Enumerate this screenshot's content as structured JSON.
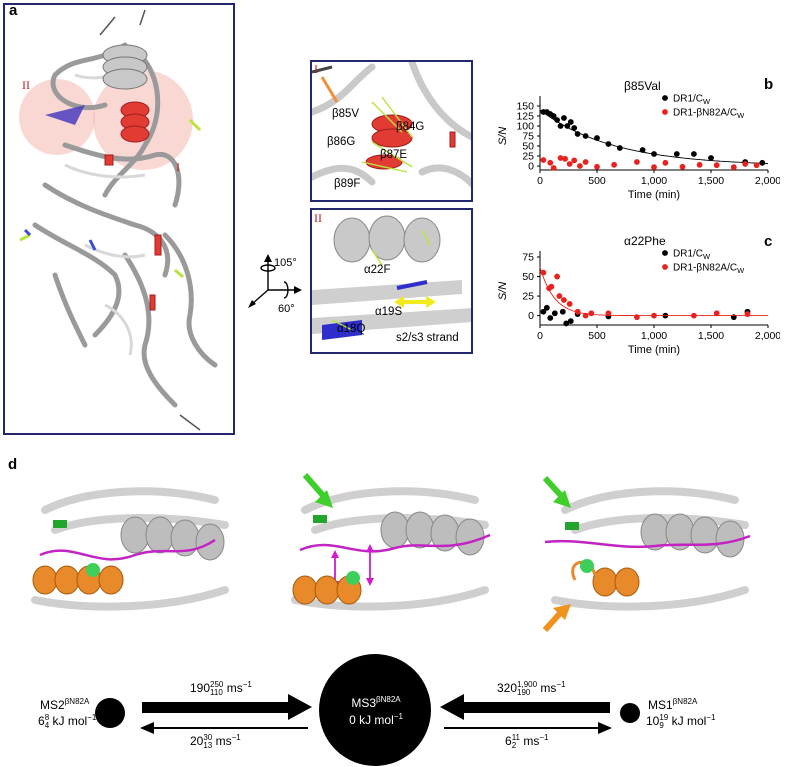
{
  "panels": {
    "a": {
      "label": "a",
      "region_labels": [
        "II",
        "I"
      ],
      "rotation": {
        "vertical": "105°",
        "horizontal": "60°"
      },
      "inset_I": {
        "label": "I",
        "residues": [
          "β85V",
          "β84G",
          "β86G",
          "β87E",
          "β89F"
        ]
      },
      "inset_II": {
        "label": "II",
        "residues": [
          "α22F",
          "α19S",
          "α18Q",
          "s2/s3 strand"
        ]
      }
    },
    "b": {
      "label": "b"
    },
    "c": {
      "label": "c"
    },
    "d": {
      "label": "d",
      "states": [
        {
          "name": "MS2",
          "sup": "βN82A",
          "energy": "6",
          "energy_sup": "8",
          "energy_sub": "4",
          "unit": "kJ mol"
        },
        {
          "name": "MS3",
          "sup": "βN82A",
          "energy_text": "0 kJ mol"
        },
        {
          "name": "MS1",
          "sup": "βN82A",
          "energy": "10",
          "energy_sup": "19",
          "energy_sub": "9",
          "unit": "kJ mol"
        }
      ],
      "rates": [
        {
          "value": "190",
          "sup": "250",
          "sub": "110",
          "unit": "ms"
        },
        {
          "value": "20",
          "sup": "30",
          "sub": "13",
          "unit": "ms"
        },
        {
          "value": "320",
          "sup": "1,900",
          "sub": "190",
          "unit": "ms"
        },
        {
          "value": "6",
          "sup": "11",
          "sub": "2",
          "unit": "ms"
        }
      ],
      "minus_one": "−1"
    }
  },
  "colors": {
    "dr1": "#000000",
    "mutant": "#e8231f",
    "frame": "#22276e",
    "helix": "#e8892a",
    "arrow_green": "#3ecf2b",
    "peptide": "#c223c2"
  },
  "chart_data": [
    {
      "type": "scatter",
      "title": "β85Val",
      "xlabel": "Time (min)",
      "ylabel": "S/N",
      "xlim": [
        0,
        2000
      ],
      "ylim": [
        -10,
        160
      ],
      "xticks": [
        "0",
        "500",
        "1,000",
        "1,500",
        "2,000"
      ],
      "yticks": [
        "0",
        "25",
        "50",
        "75",
        "100",
        "125",
        "150"
      ],
      "legend_position": "top-right",
      "series": [
        {
          "name": "DR1/C_W",
          "legend": "DR1/C",
          "legend_sub": "W",
          "color": "#000000",
          "points": [
            [
              30,
              135
            ],
            [
              60,
              135
            ],
            [
              90,
              130
            ],
            [
              120,
              125
            ],
            [
              150,
              115
            ],
            [
              180,
              100
            ],
            [
              210,
              120
            ],
            [
              240,
              100
            ],
            [
              270,
              110
            ],
            [
              300,
              95
            ],
            [
              330,
              80
            ],
            [
              400,
              75
            ],
            [
              500,
              70
            ],
            [
              600,
              55
            ],
            [
              700,
              45
            ],
            [
              900,
              40
            ],
            [
              1000,
              30
            ],
            [
              1200,
              30
            ],
            [
              1350,
              30
            ],
            [
              1500,
              20
            ],
            [
              1800,
              10
            ],
            [
              1950,
              8
            ]
          ],
          "fit": {
            "a": 140,
            "k": 0.00155
          }
        },
        {
          "name": "DR1-βN82A/C_W",
          "legend": "DR1-βN82A/C",
          "legend_sub": "W",
          "color": "#e8231f",
          "points": [
            [
              30,
              15
            ],
            [
              90,
              8
            ],
            [
              120,
              -5
            ],
            [
              180,
              20
            ],
            [
              220,
              18
            ],
            [
              260,
              5
            ],
            [
              300,
              14
            ],
            [
              350,
              0
            ],
            [
              400,
              10
            ],
            [
              500,
              -2
            ],
            [
              650,
              3
            ],
            [
              850,
              10
            ],
            [
              1000,
              -3
            ],
            [
              1100,
              8
            ],
            [
              1250,
              -2
            ],
            [
              1400,
              3
            ],
            [
              1550,
              2
            ],
            [
              1700,
              -3
            ],
            [
              1800,
              5
            ],
            [
              1900,
              2
            ]
          ]
        }
      ]
    },
    {
      "type": "scatter",
      "title": "α22Phe",
      "xlabel": "Time (min)",
      "ylabel": "S/N",
      "xlim": [
        0,
        2000
      ],
      "ylim": [
        -12,
        75
      ],
      "xticks": [
        "0",
        "500",
        "1,000",
        "1,500",
        "2,000"
      ],
      "yticks": [
        "0",
        "25",
        "50",
        "75"
      ],
      "legend_position": "top-right",
      "series": [
        {
          "name": "DR1/C_W",
          "legend": "DR1/C",
          "legend_sub": "W",
          "color": "#000000",
          "points": [
            [
              30,
              5
            ],
            [
              60,
              10
            ],
            [
              90,
              -3
            ],
            [
              130,
              3
            ],
            [
              200,
              5
            ],
            [
              230,
              -10
            ],
            [
              270,
              -7
            ],
            [
              330,
              2
            ],
            [
              600,
              -1
            ],
            [
              1100,
              0
            ],
            [
              1700,
              -2
            ],
            [
              1820,
              5
            ]
          ]
        },
        {
          "name": "DR1-βN82A/C_W",
          "legend": "DR1-βN82A/C",
          "legend_sub": "W",
          "color": "#e8231f",
          "points": [
            [
              30,
              55
            ],
            [
              80,
              35
            ],
            [
              100,
              37
            ],
            [
              150,
              50
            ],
            [
              170,
              25
            ],
            [
              210,
              20
            ],
            [
              260,
              15
            ],
            [
              330,
              5
            ],
            [
              400,
              0
            ],
            [
              450,
              3
            ],
            [
              600,
              3
            ],
            [
              850,
              -2
            ],
            [
              1000,
              0
            ],
            [
              1350,
              0
            ],
            [
              1550,
              3
            ],
            [
              1820,
              2
            ]
          ],
          "fit": {
            "a": 62,
            "k": 0.008
          }
        }
      ]
    }
  ]
}
